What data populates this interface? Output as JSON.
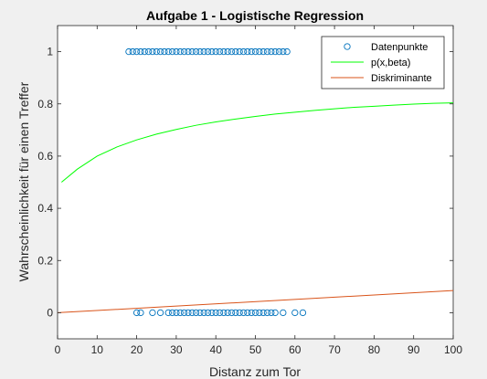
{
  "chart_data": {
    "type": "scatter",
    "title": "Aufgabe 1 - Logistische Regression",
    "xlabel": "Distanz zum Tor",
    "ylabel": "Wahrscheinlichkeit für einen Treffer",
    "xlim": [
      0,
      100
    ],
    "ylim": [
      -0.1,
      1.1
    ],
    "xticks": [
      0,
      10,
      20,
      30,
      40,
      50,
      60,
      70,
      80,
      90,
      100
    ],
    "yticks": [
      0,
      0.2,
      0.4,
      0.6,
      0.8,
      1
    ],
    "xtick_labels": [
      "0",
      "10",
      "20",
      "30",
      "40",
      "50",
      "60",
      "70",
      "80",
      "90",
      "100"
    ],
    "ytick_labels": [
      "0",
      "0.2",
      "0.4",
      "0.6",
      "0.8",
      "1"
    ],
    "grid": false,
    "legend_position": "top-right",
    "series": [
      {
        "name": "Datenpunkte",
        "kind": "scatter",
        "marker": "circle",
        "color": "#0072BD",
        "points": [
          [
            18,
            1
          ],
          [
            19,
            1
          ],
          [
            20,
            1
          ],
          [
            21,
            1
          ],
          [
            22,
            1
          ],
          [
            23,
            1
          ],
          [
            24,
            1
          ],
          [
            25,
            1
          ],
          [
            26,
            1
          ],
          [
            27,
            1
          ],
          [
            28,
            1
          ],
          [
            29,
            1
          ],
          [
            30,
            1
          ],
          [
            31,
            1
          ],
          [
            32,
            1
          ],
          [
            33,
            1
          ],
          [
            34,
            1
          ],
          [
            35,
            1
          ],
          [
            36,
            1
          ],
          [
            37,
            1
          ],
          [
            38,
            1
          ],
          [
            39,
            1
          ],
          [
            40,
            1
          ],
          [
            41,
            1
          ],
          [
            42,
            1
          ],
          [
            43,
            1
          ],
          [
            44,
            1
          ],
          [
            45,
            1
          ],
          [
            46,
            1
          ],
          [
            47,
            1
          ],
          [
            48,
            1
          ],
          [
            49,
            1
          ],
          [
            50,
            1
          ],
          [
            51,
            1
          ],
          [
            52,
            1
          ],
          [
            53,
            1
          ],
          [
            54,
            1
          ],
          [
            55,
            1
          ],
          [
            56,
            1
          ],
          [
            57,
            1
          ],
          [
            58,
            1
          ],
          [
            20,
            0
          ],
          [
            21,
            0
          ],
          [
            24,
            0
          ],
          [
            26,
            0
          ],
          [
            28,
            0
          ],
          [
            29,
            0
          ],
          [
            30,
            0
          ],
          [
            31,
            0
          ],
          [
            32,
            0
          ],
          [
            33,
            0
          ],
          [
            34,
            0
          ],
          [
            35,
            0
          ],
          [
            36,
            0
          ],
          [
            37,
            0
          ],
          [
            38,
            0
          ],
          [
            39,
            0
          ],
          [
            40,
            0
          ],
          [
            41,
            0
          ],
          [
            42,
            0
          ],
          [
            43,
            0
          ],
          [
            44,
            0
          ],
          [
            45,
            0
          ],
          [
            46,
            0
          ],
          [
            47,
            0
          ],
          [
            48,
            0
          ],
          [
            49,
            0
          ],
          [
            50,
            0
          ],
          [
            51,
            0
          ],
          [
            52,
            0
          ],
          [
            53,
            0
          ],
          [
            54,
            0
          ],
          [
            55,
            0
          ],
          [
            57,
            0
          ],
          [
            60,
            0
          ],
          [
            62,
            0
          ]
        ]
      },
      {
        "name": "p(x,beta)",
        "kind": "line",
        "color": "#00FF00",
        "points": [
          [
            1,
            0.5
          ],
          [
            5,
            0.55
          ],
          [
            10,
            0.6
          ],
          [
            15,
            0.635
          ],
          [
            20,
            0.662
          ],
          [
            25,
            0.684
          ],
          [
            30,
            0.702
          ],
          [
            35,
            0.718
          ],
          [
            40,
            0.731
          ],
          [
            45,
            0.742
          ],
          [
            50,
            0.752
          ],
          [
            55,
            0.761
          ],
          [
            60,
            0.768
          ],
          [
            65,
            0.775
          ],
          [
            70,
            0.781
          ],
          [
            75,
            0.787
          ],
          [
            80,
            0.791
          ],
          [
            85,
            0.795
          ],
          [
            90,
            0.799
          ],
          [
            95,
            0.802
          ],
          [
            100,
            0.804
          ]
        ]
      },
      {
        "name": "Diskriminante",
        "kind": "line",
        "color": "#D95319",
        "points": [
          [
            0,
            0
          ],
          [
            100,
            0.085
          ]
        ]
      }
    ]
  }
}
